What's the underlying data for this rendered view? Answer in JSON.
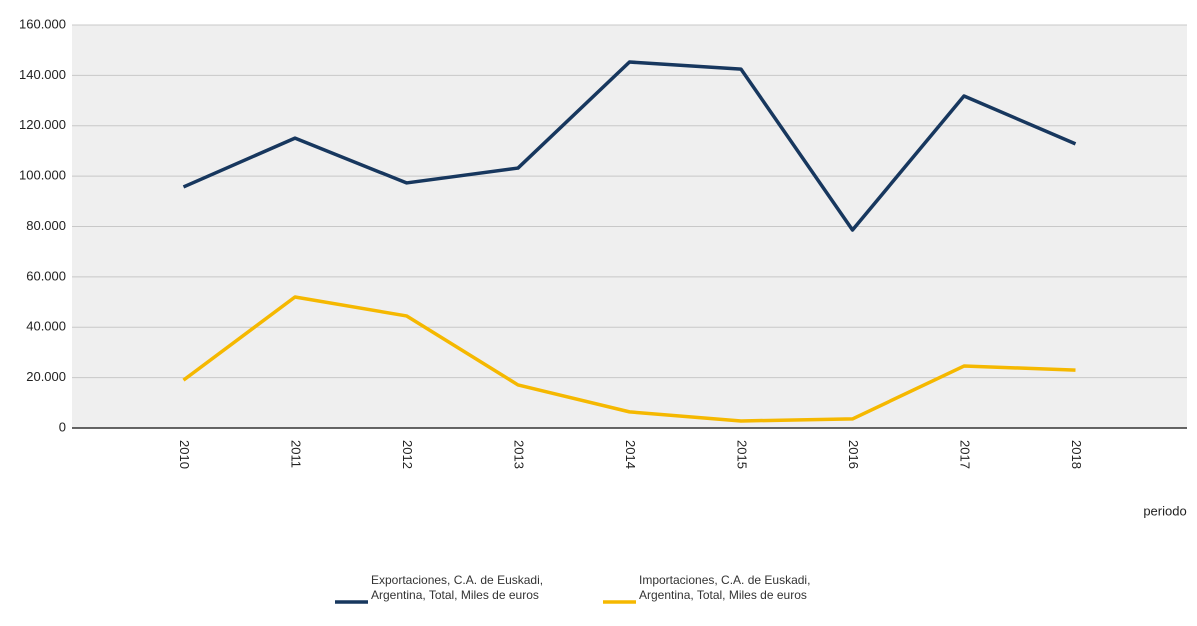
{
  "chart_data": {
    "type": "line",
    "x_label": "periodo",
    "categories": [
      "2010",
      "2011",
      "2012",
      "2013",
      "2014",
      "2015",
      "2016",
      "2017",
      "2018"
    ],
    "series": [
      {
        "name": "Exportaciones, C.A. de Euskadi, Argentina, Total, Miles de euros",
        "color": "#17375e",
        "values": [
          95700,
          115100,
          97300,
          103200,
          145300,
          142500,
          78600,
          131800,
          112800
        ]
      },
      {
        "name": "Importaciones, C.A. de Euskadi, Argentina, Total, Miles de euros",
        "color": "#f5b800",
        "values": [
          19000,
          52000,
          44500,
          17100,
          6400,
          2800,
          3600,
          24600,
          23000
        ]
      }
    ],
    "ylim": [
      0,
      160000
    ],
    "yticks": [
      0,
      {
        "value": 20000,
        "label": "20.000"
      },
      {
        "value": 40000,
        "label": "40.000"
      },
      {
        "value": 60000,
        "label": "60.000"
      },
      {
        "value": 80000,
        "label": "80.000"
      },
      {
        "value": 100000,
        "label": "100.000"
      },
      {
        "value": 120000,
        "label": "120.000"
      },
      {
        "value": 140000,
        "label": "140.000"
      },
      {
        "value": 160000,
        "label": "160.000"
      }
    ],
    "grid": true
  }
}
